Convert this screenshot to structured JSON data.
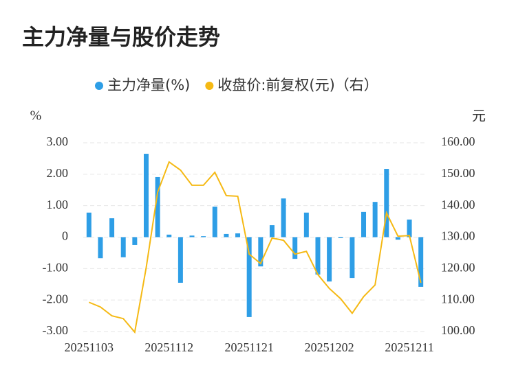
{
  "chart_data": {
    "type": "bar_line",
    "title": "主力净量与股价走势",
    "y_label": "%",
    "y2_label": "元",
    "categories": [
      "20251103",
      null,
      null,
      null,
      null,
      null,
      null,
      "20251112",
      null,
      null,
      null,
      null,
      null,
      null,
      "20251121",
      null,
      null,
      null,
      null,
      null,
      null,
      "20251202",
      null,
      null,
      null,
      null,
      null,
      null,
      "20251211",
      null
    ],
    "series": [
      {
        "name": "主力净量(%)",
        "type": "bar",
        "color": "#2e9ee6",
        "values": [
          0.78,
          -0.67,
          0.6,
          -0.64,
          -0.25,
          2.65,
          1.91,
          0.08,
          -1.45,
          0.05,
          0.03,
          0.97,
          0.1,
          0.12,
          -2.54,
          -0.93,
          0.38,
          1.23,
          -0.69,
          0.78,
          -1.19,
          -1.41,
          -0.03,
          -1.3,
          0.8,
          1.12,
          2.17,
          -0.08,
          0.56,
          -1.58
        ]
      },
      {
        "name": "收盘价:前复权(元)（右）",
        "type": "line",
        "axis": "y2",
        "color": "#f5b914",
        "values": [
          109.3,
          107.8,
          105.0,
          104.1,
          99.8,
          120.3,
          144.3,
          153.9,
          151.3,
          146.5,
          146.5,
          150.6,
          143.2,
          143.0,
          124.6,
          121.6,
          129.7,
          129.0,
          124.6,
          125.5,
          118.1,
          113.7,
          110.4,
          105.8,
          111.1,
          114.8,
          137.7,
          130.3,
          130.5,
          115.5
        ]
      }
    ],
    "ylim": [
      -3,
      3
    ],
    "yticks": [
      {
        "value": -3,
        "label": "-3.00"
      },
      {
        "value": -2,
        "label": "-2.00"
      },
      {
        "value": -1,
        "label": "-1.00"
      },
      0,
      {
        "value": 1,
        "label": "1.00"
      },
      {
        "value": 2,
        "label": "2.00"
      },
      {
        "value": 3,
        "label": "3.00"
      }
    ],
    "y2lim": [
      100,
      160
    ],
    "y2ticks": [
      {
        "value": 100,
        "label": "100.00"
      },
      {
        "value": 110,
        "label": "110.00"
      },
      {
        "value": 120,
        "label": "120.00"
      },
      {
        "value": 130,
        "label": "130.00"
      },
      {
        "value": 140,
        "label": "140.00"
      },
      {
        "value": 150,
        "label": "150.00"
      },
      {
        "value": 160,
        "label": "160.00"
      }
    ],
    "grid": true,
    "legend": "top"
  }
}
